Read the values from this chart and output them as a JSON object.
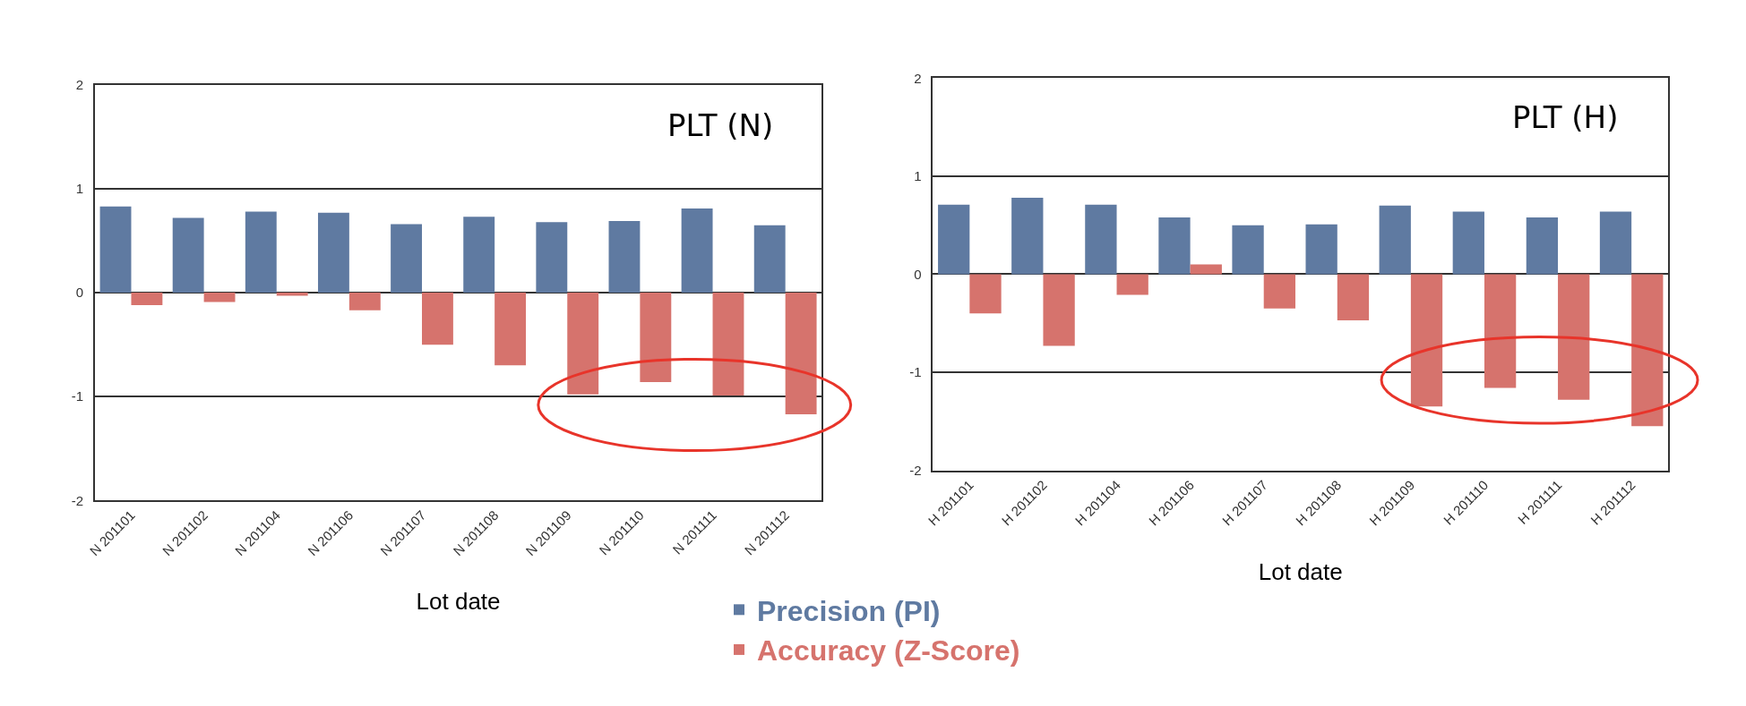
{
  "chart_data": [
    {
      "type": "bar",
      "title": "PLT (N)",
      "xlabel": "Lot date",
      "categories": [
        "N 201101",
        "N 201102",
        "N 201104",
        "N 201106",
        "N 201107",
        "N 201108",
        "N 201109",
        "N 201110",
        "N 201111",
        "N 201112"
      ],
      "series": [
        {
          "name": "Precision (PI)",
          "color": "#5f7aa1",
          "values": [
            0.83,
            0.72,
            0.78,
            0.77,
            0.66,
            0.73,
            0.68,
            0.69,
            0.81,
            0.65
          ]
        },
        {
          "name": "Accuracy (Z-Score)",
          "color": "#d6736d",
          "values": [
            -0.12,
            -0.09,
            -0.03,
            -0.17,
            -0.5,
            -0.7,
            -0.98,
            -0.86,
            -0.99,
            -1.17
          ]
        }
      ],
      "ylim": [
        -2,
        2
      ],
      "yticks": [
        -2,
        -1,
        0,
        1,
        2
      ],
      "grid": "y",
      "legend": "bottom"
    },
    {
      "type": "bar",
      "title": "PLT (H)",
      "xlabel": "Lot date",
      "categories": [
        "H 201101",
        "H 201102",
        "H 201104",
        "H 201106",
        "H 201107",
        "H 201108",
        "H 201109",
        "H 201110",
        "H 201111",
        "H 201112"
      ],
      "series": [
        {
          "name": "Precision (PI)",
          "color": "#5f7aa1",
          "values": [
            0.71,
            0.78,
            0.71,
            0.58,
            0.5,
            0.51,
            0.7,
            0.64,
            0.58,
            0.64
          ]
        },
        {
          "name": "Accuracy (Z-Score)",
          "color": "#d6736d",
          "values": [
            -0.4,
            -0.73,
            -0.21,
            0.1,
            -0.35,
            -0.47,
            -1.35,
            -1.16,
            -1.28,
            -1.55
          ]
        }
      ],
      "ylim": [
        -2,
        2
      ],
      "yticks": [
        -2,
        -1,
        0,
        1,
        2
      ],
      "grid": "y",
      "legend": "bottom"
    }
  ]
}
